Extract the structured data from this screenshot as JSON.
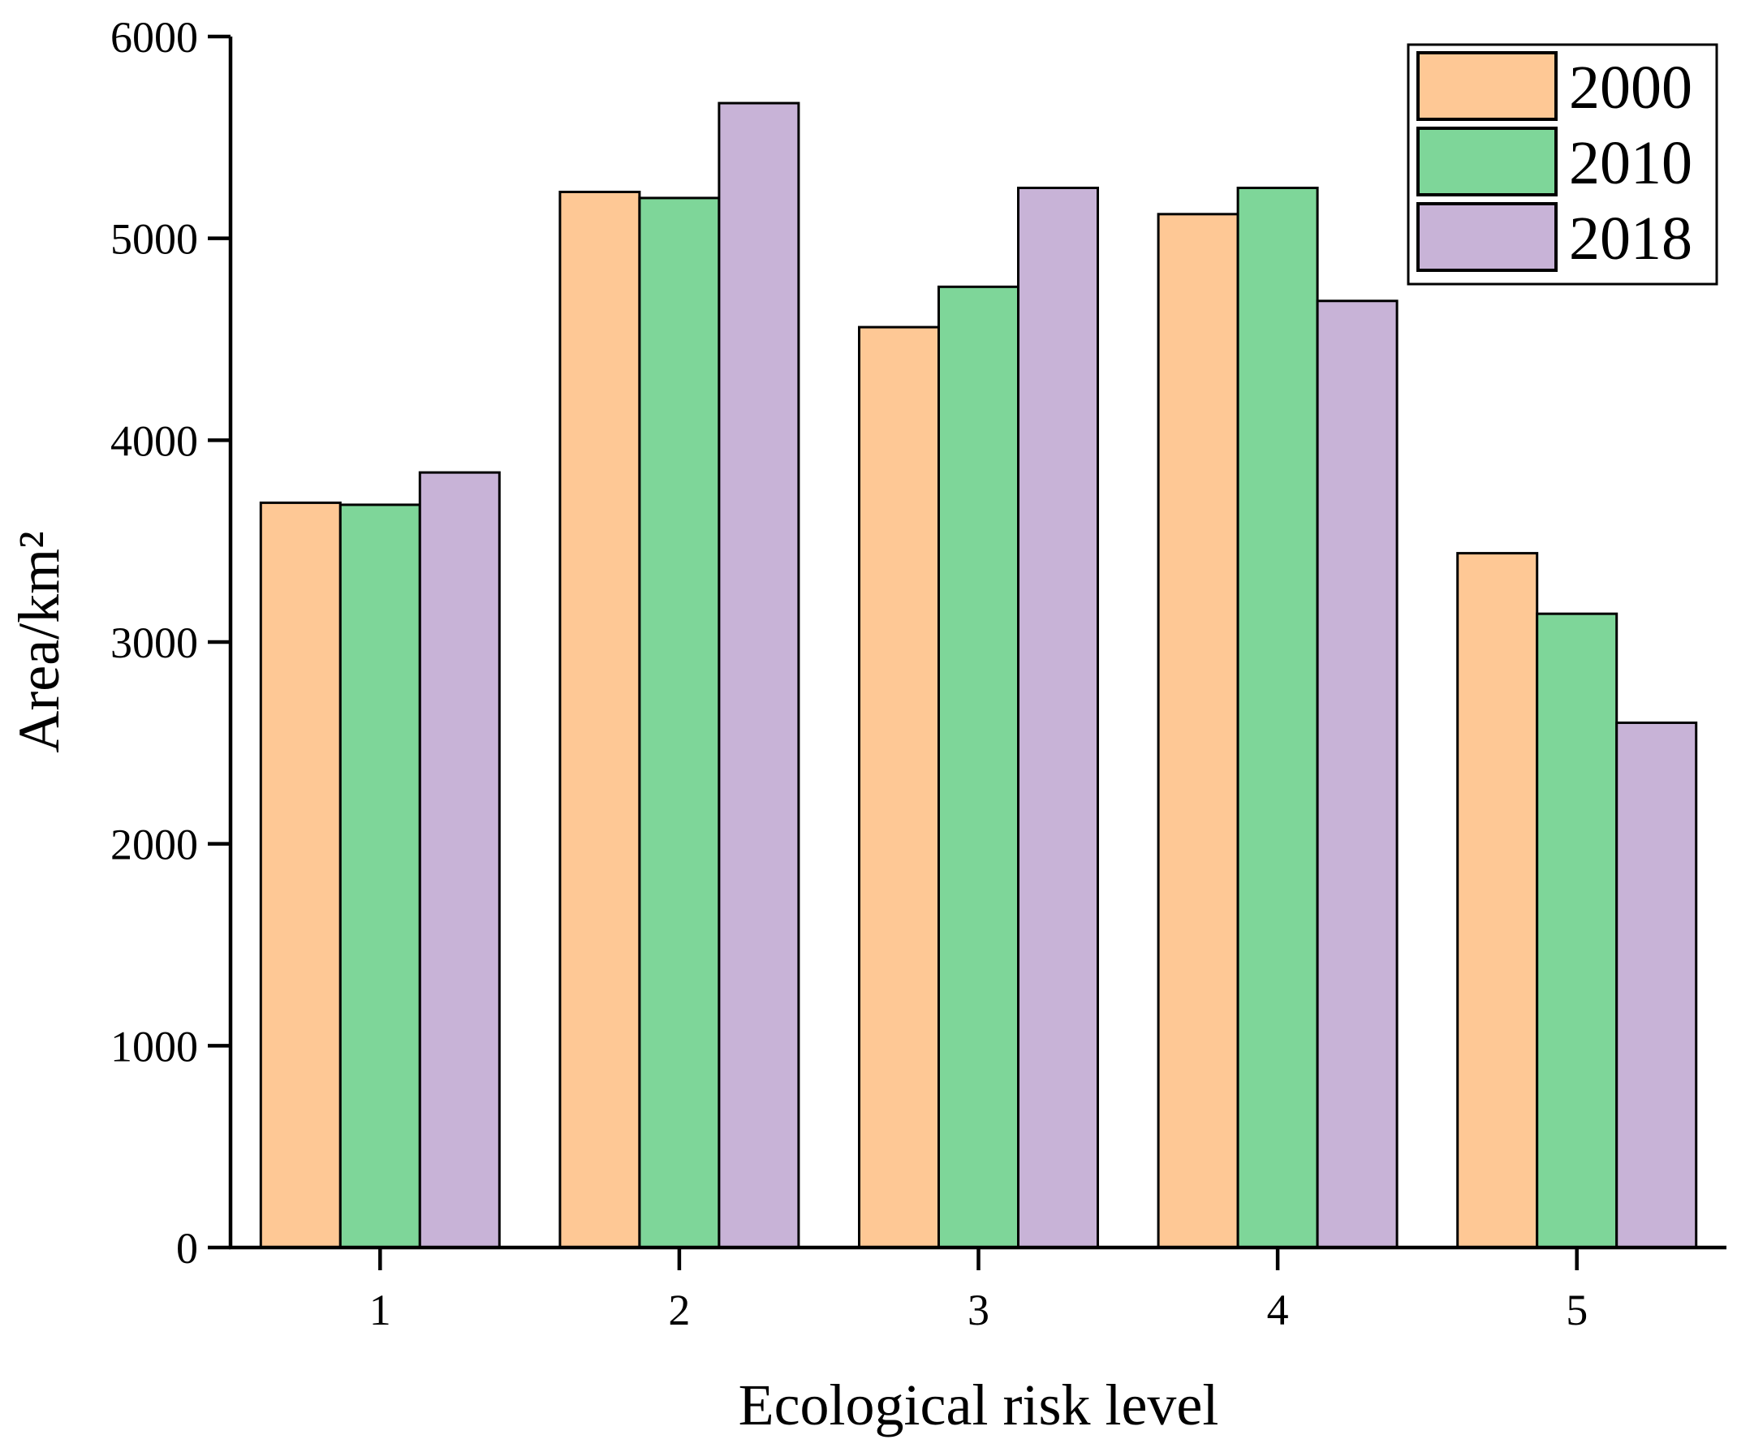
{
  "chart_data": {
    "type": "bar",
    "title": "",
    "xlabel": "Ecological risk level",
    "ylabel": "Area/km²",
    "categories": [
      "1",
      "2",
      "3",
      "4",
      "5"
    ],
    "series": [
      {
        "name": "2000",
        "color": "#FEC895",
        "values": [
          3690,
          5230,
          4560,
          5120,
          3440
        ]
      },
      {
        "name": "2010",
        "color": "#7ED699",
        "values": [
          3680,
          5200,
          4760,
          5250,
          3140
        ]
      },
      {
        "name": "2018",
        "color": "#C8B3D7",
        "values": [
          3840,
          5670,
          5250,
          4690,
          2600
        ]
      }
    ],
    "ylim": [
      0,
      6000
    ],
    "yticks": [
      0,
      1000,
      2000,
      3000,
      4000,
      5000,
      6000
    ],
    "ytick_labels": [
      "0",
      "1000",
      "2000",
      "3000",
      "4000",
      "5000",
      "6000"
    ],
    "grid": false,
    "legend_position": "top-right"
  }
}
